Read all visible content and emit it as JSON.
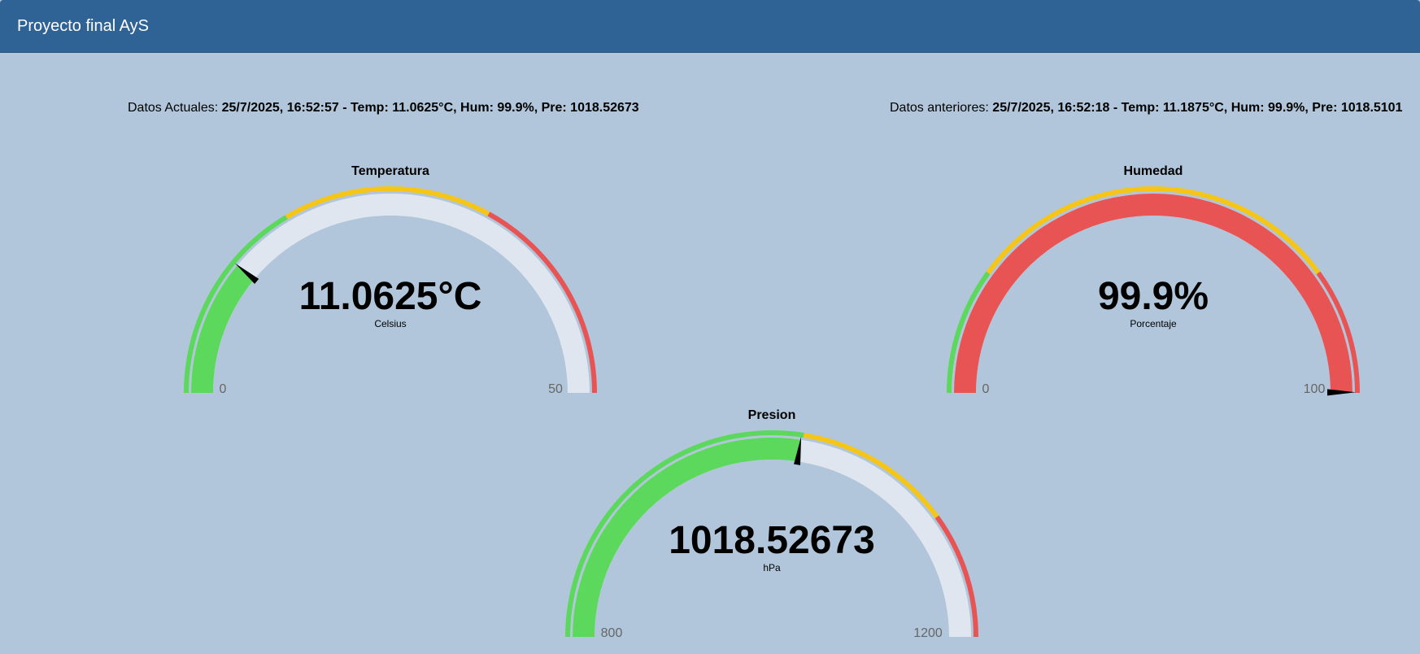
{
  "app": {
    "title": "Proyecto final AyS"
  },
  "current": {
    "label": "Datos Actuales:",
    "value": "25/7/2025, 16:52:57 - Temp: 11.0625°C, Hum: 99.9%, Pre: 1018.52673"
  },
  "previous": {
    "label": "Datos anteriores:",
    "value": "25/7/2025, 16:52:18 - Temp: 11.1875°C, Hum: 99.9%, Pre: 1018.5101"
  },
  "colors": {
    "header": "#306395",
    "background": "#b1c6da",
    "green": "#5cd85c",
    "yellow": "#f5c518",
    "red": "#e85454",
    "track": "#dfe6ef"
  },
  "gauges": {
    "temperature": {
      "title": "Temperatura",
      "value_text": "11.0625°C",
      "unit": "Celsius",
      "min_label": "0",
      "max_label": "50",
      "min": 0,
      "max": 50,
      "value": 11.0625,
      "fill": "green",
      "zones": [
        {
          "from": 0,
          "to": 0.33,
          "color": "green"
        },
        {
          "from": 0.33,
          "to": 0.66,
          "color": "yellow"
        },
        {
          "from": 0.66,
          "to": 1,
          "color": "red"
        }
      ]
    },
    "humidity": {
      "title": "Humedad",
      "value_text": "99.9%",
      "unit": "Porcentaje",
      "min_label": "0",
      "max_label": "100",
      "min": 0,
      "max": 100,
      "value": 99.9,
      "fill": "red",
      "zones": [
        {
          "from": 0,
          "to": 0.2,
          "color": "green"
        },
        {
          "from": 0.2,
          "to": 0.8,
          "color": "yellow"
        },
        {
          "from": 0.8,
          "to": 1,
          "color": "red"
        }
      ]
    },
    "pressure": {
      "title": "Presion",
      "value_text": "1018.52673",
      "unit": "hPa",
      "min_label": "800",
      "max_label": "1200",
      "min": 800,
      "max": 1200,
      "value": 1018.52673,
      "fill": "green",
      "zones": [
        {
          "from": 0,
          "to": 0.55,
          "color": "green"
        },
        {
          "from": 0.55,
          "to": 0.8,
          "color": "yellow"
        },
        {
          "from": 0.8,
          "to": 1,
          "color": "red"
        }
      ]
    }
  }
}
